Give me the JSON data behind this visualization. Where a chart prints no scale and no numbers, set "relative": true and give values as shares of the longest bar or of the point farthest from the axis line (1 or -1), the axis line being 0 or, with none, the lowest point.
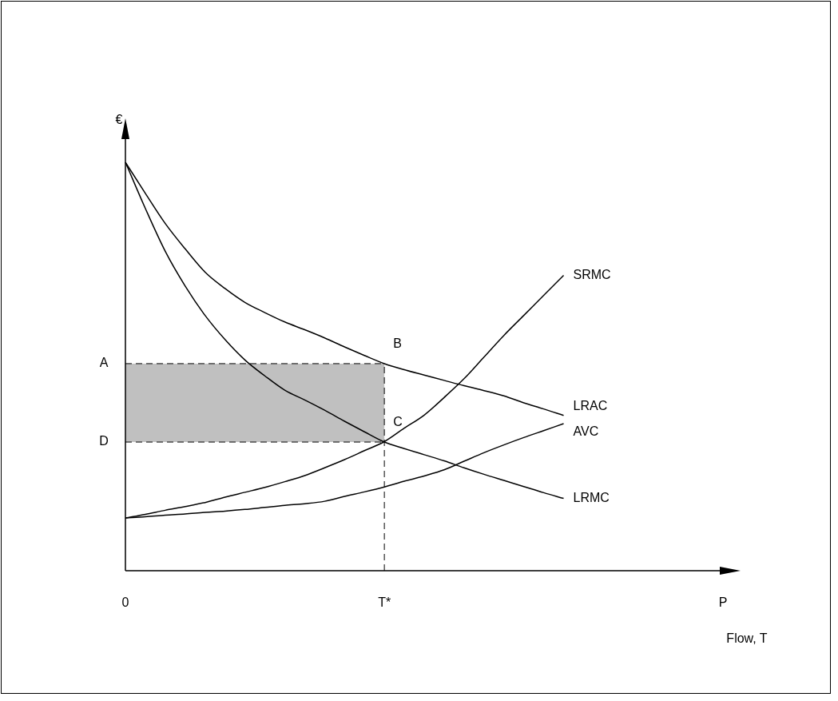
{
  "chart_data": {
    "type": "line",
    "relative": true,
    "xlabel": "Flow, T",
    "ylabel": "€",
    "categories": [
      "0",
      null,
      null,
      null,
      null,
      null,
      null,
      null,
      null,
      null,
      null,
      null,
      null,
      "T*",
      null,
      null,
      null,
      null,
      null,
      null,
      null,
      null,
      null,
      null,
      null,
      null,
      null,
      null,
      null,
      null,
      "P"
    ],
    "legend": false,
    "marker": "none",
    "line_style": "solid",
    "series": [
      {
        "name": "SRMC",
        "color": "#000000",
        "values": [
          0.129,
          0.138,
          0.148,
          0.157,
          0.167,
          0.18,
          0.192,
          0.204,
          0.218,
          0.233,
          0.252,
          0.272,
          0.294,
          0.316,
          0.349,
          0.381,
          0.424,
          0.47,
          0.523,
          0.576,
          0.625,
          0.674,
          0.723,
          null,
          null,
          null,
          null,
          null,
          null,
          null,
          null
        ]
      },
      {
        "name": "LRAC",
        "color": "#000000",
        "values": [
          1,
          0.924,
          0.85,
          0.788,
          0.731,
          0.691,
          0.657,
          0.632,
          0.609,
          0.59,
          0.57,
          0.548,
          0.527,
          0.507,
          0.492,
          0.479,
          0.466,
          0.453,
          0.441,
          0.428,
          0.411,
          0.396,
          0.38,
          null,
          null,
          null,
          null,
          null,
          null,
          null,
          null
        ]
      },
      {
        "name": "AVC",
        "color": "#000000",
        "values": [
          0.129,
          0.132,
          0.136,
          0.139,
          0.143,
          0.146,
          0.15,
          0.155,
          0.16,
          0.164,
          0.17,
          0.182,
          0.193,
          0.205,
          0.219,
          0.232,
          0.247,
          0.268,
          0.289,
          0.308,
          0.326,
          0.343,
          0.36,
          null,
          null,
          null,
          null,
          null,
          null,
          null,
          null
        ]
      },
      {
        "name": "LRMC",
        "color": "#000000",
        "values": [
          1,
          0.887,
          0.782,
          0.697,
          0.625,
          0.566,
          0.516,
          0.477,
          0.442,
          0.418,
          0.393,
          0.366,
          0.34,
          0.315,
          0.299,
          0.284,
          0.269,
          0.252,
          0.236,
          0.221,
          0.206,
          0.191,
          0.177,
          null,
          null,
          null,
          null,
          null,
          null,
          null,
          null
        ]
      }
    ],
    "ref_lines": [
      {
        "axis": "x",
        "value": "T*",
        "color": "#000000",
        "line_style": "dashed"
      },
      {
        "axis": "y",
        "value": 0.507,
        "label": "A",
        "color": "#000000",
        "line_style": "dashed"
      },
      {
        "axis": "y",
        "value": 0.315,
        "label": "D",
        "color": "#000000",
        "line_style": "dashed"
      }
    ],
    "bands": [
      {
        "axis": "y",
        "from": 0.315,
        "to": 0.507,
        "color": "#c0c0c0"
      }
    ],
    "annotations": [
      {
        "text": "B",
        "x": "T*",
        "y": 0.507
      },
      {
        "text": "C",
        "x": "T*",
        "y": 0.315
      }
    ]
  }
}
